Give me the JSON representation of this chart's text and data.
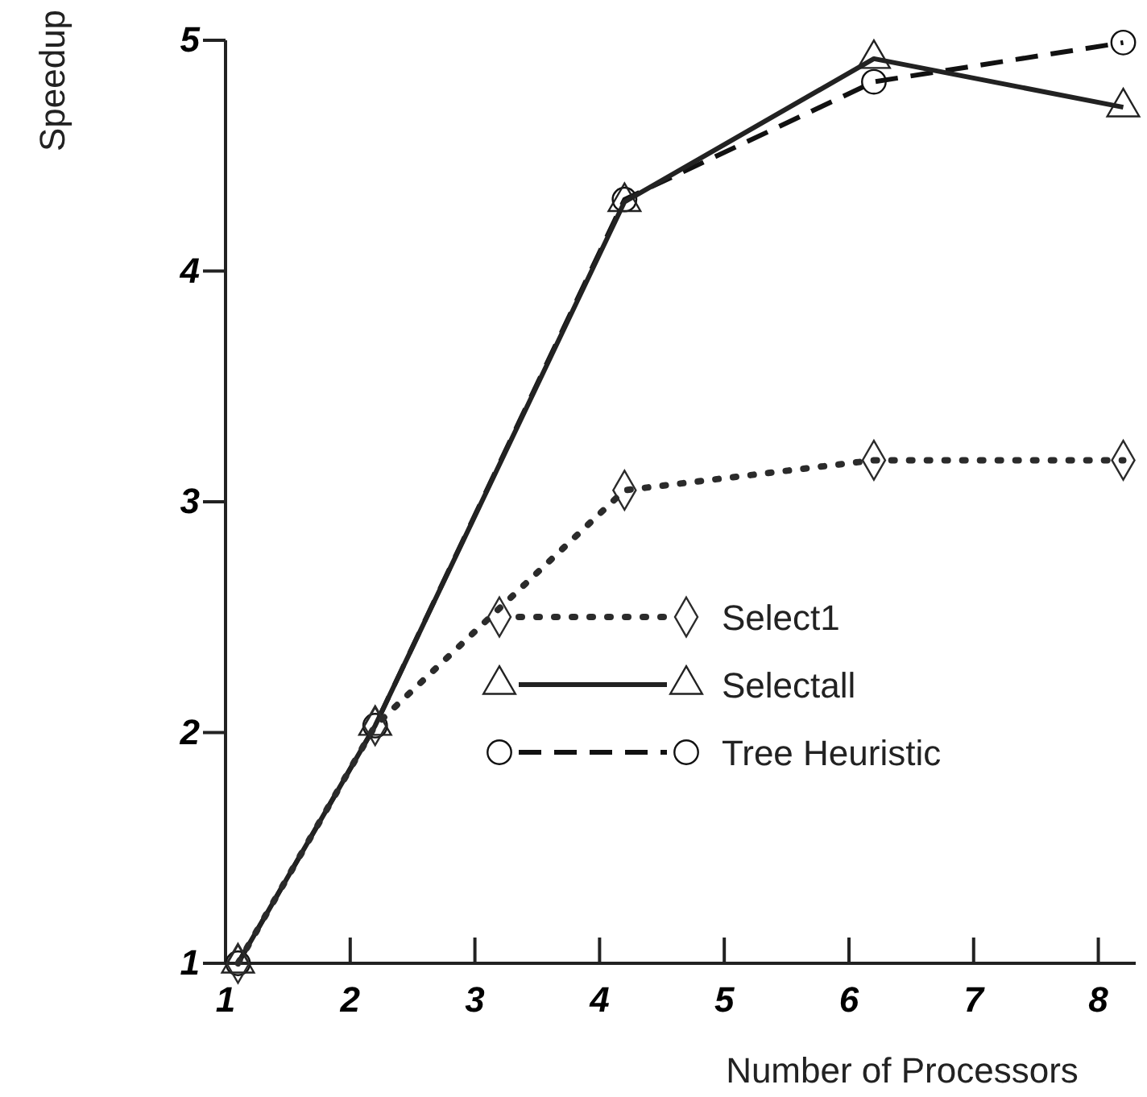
{
  "chart_data": {
    "type": "line",
    "xlabel": "Number of Processors",
    "ylabel": "Speedup",
    "xlim": [
      1,
      8.3
    ],
    "ylim": [
      1,
      5
    ],
    "xticks": [
      1,
      2,
      3,
      4,
      5,
      6,
      7,
      8
    ],
    "yticks": [
      1,
      2,
      3,
      4,
      5
    ],
    "x": [
      1.1,
      2.2,
      4.2,
      6.2,
      8.2
    ],
    "grid": false,
    "legend": "right",
    "series": [
      {
        "name": "Select1",
        "color": "#2b2b2b",
        "marker": "diamond",
        "line_style": "dotted",
        "values": [
          1,
          2.03,
          3.05,
          3.18,
          3.18
        ]
      },
      {
        "name": "Selectall",
        "color": "#222222",
        "marker": "triangle",
        "line_style": "solid",
        "values": [
          1,
          2.03,
          4.3,
          4.92,
          4.71
        ]
      },
      {
        "name": "Tree Heuristic",
        "color": "#111111",
        "marker": "circle",
        "line_style": "dashed",
        "values": [
          1,
          2.03,
          4.31,
          4.82,
          4.99
        ]
      }
    ]
  }
}
